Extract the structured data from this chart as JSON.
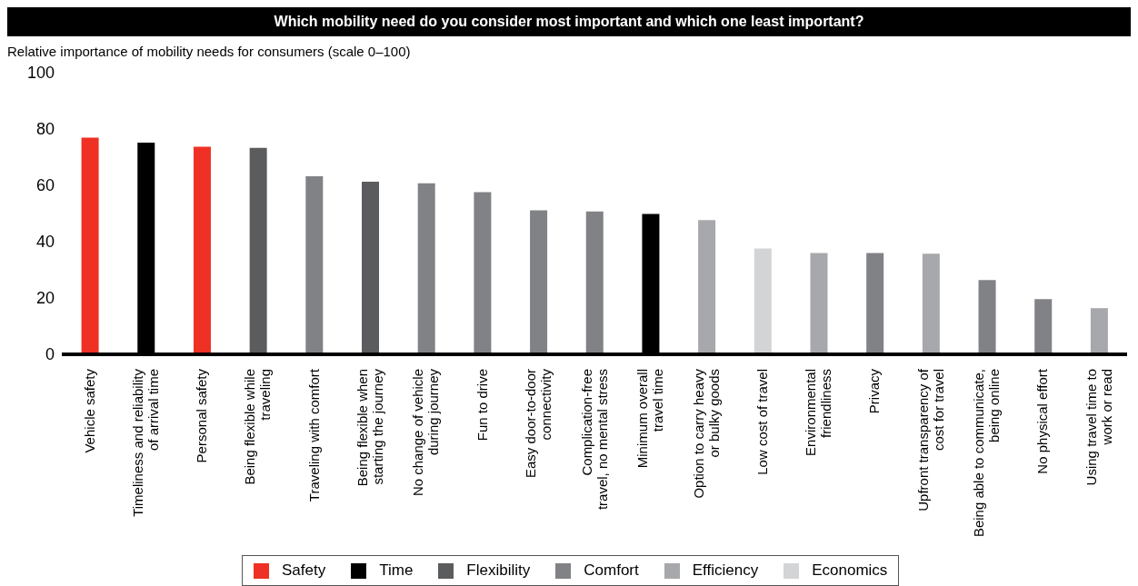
{
  "chart_data": {
    "type": "bar",
    "title": "Which mobility need do you consider most important and which one least important?",
    "subtitle": "Relative importance of mobility needs for consumers (scale 0–100)",
    "categories": [
      "Vehicle safety",
      "Timeliness and reliability\nof arrival time",
      "Personal safety",
      "Being flexible while\ntraveling",
      "Traveling with comfort",
      "Being flexible when\nstarting the journey",
      "No change of vehicle\nduring journey",
      "Fun to drive",
      "Easy door-to-door\nconnectivity",
      "Complication-free\ntravel, no mental stress",
      "Minimum overall\ntravel time",
      "Option to carry heavy\nor bulky goods",
      "Low cost of travel",
      "Environmental\nfriendliness",
      "Privacy",
      "Upfront transparency of\ncost for travel",
      "Being able to communicate,\nbeing online",
      "No physical effort",
      "Using travel time to\nwork or read"
    ],
    "stacked": true,
    "series": [
      {
        "name": "Safety",
        "color": "#ee3124",
        "values": [
          76.9,
          null,
          73.7,
          null,
          null,
          null,
          null,
          null,
          null,
          null,
          null,
          null,
          null,
          null,
          null,
          null,
          null,
          null,
          null
        ]
      },
      {
        "name": "Time",
        "color": "#000000",
        "values": [
          null,
          75.2,
          null,
          null,
          null,
          null,
          null,
          null,
          null,
          null,
          49.8,
          null,
          null,
          null,
          null,
          null,
          null,
          null,
          null
        ]
      },
      {
        "name": "Flexibility",
        "color": "#5b5c5e",
        "values": [
          null,
          null,
          null,
          73.3,
          null,
          61.3,
          null,
          null,
          null,
          null,
          null,
          null,
          null,
          null,
          null,
          null,
          null,
          null,
          null
        ]
      },
      {
        "name": "Comfort",
        "color": "#818286",
        "values": [
          null,
          null,
          null,
          null,
          63.2,
          null,
          60.7,
          57.6,
          51.1,
          50.7,
          null,
          null,
          null,
          null,
          36,
          null,
          26.4,
          19.6,
          null
        ]
      },
      {
        "name": "Efficiency",
        "color": "#a7a8ab",
        "values": [
          null,
          null,
          null,
          null,
          null,
          null,
          null,
          null,
          null,
          null,
          null,
          47.7,
          null,
          36,
          null,
          35.7,
          null,
          null,
          16.4
        ]
      },
      {
        "name": "Economics",
        "color": "#d3d4d6",
        "values": [
          null,
          null,
          null,
          null,
          null,
          null,
          null,
          null,
          null,
          null,
          null,
          null,
          37.6,
          null,
          null,
          null,
          null,
          null,
          null
        ]
      }
    ],
    "ylim": [
      0,
      100
    ],
    "yticks": [
      0,
      20,
      40,
      60,
      80,
      100
    ],
    "grid": false,
    "legend": "bottom"
  }
}
